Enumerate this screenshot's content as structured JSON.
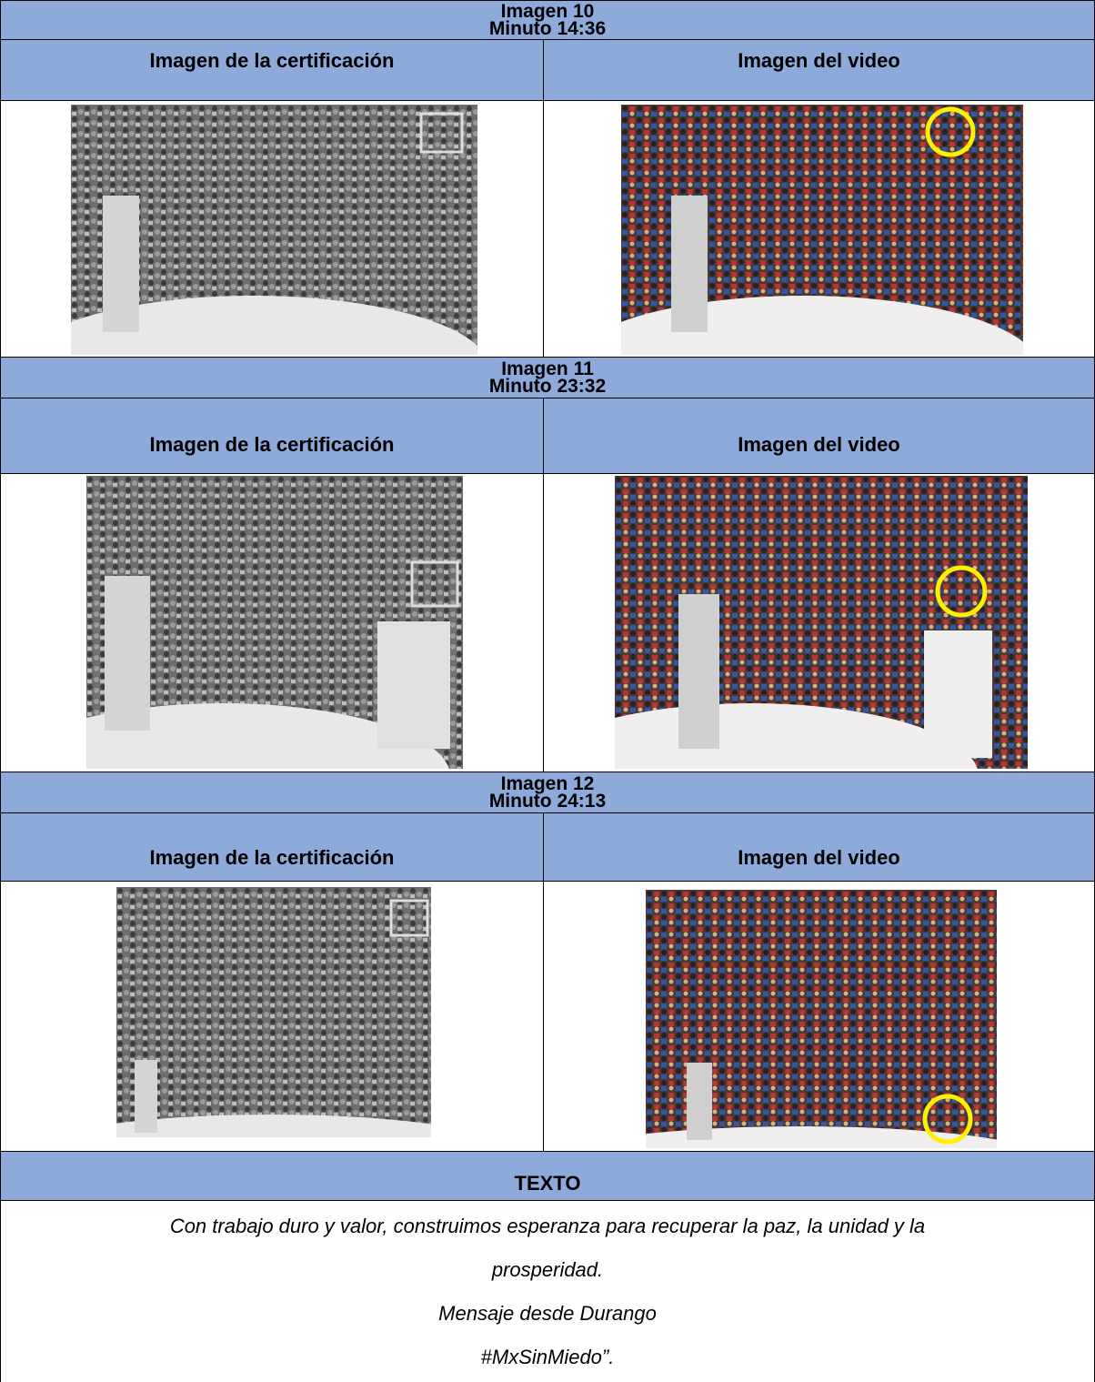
{
  "sections": [
    {
      "title": "Imagen 10",
      "minute": "Minuto 14:36",
      "left_header": "Imagen de la certificación",
      "right_header": "Imagen del video"
    },
    {
      "title": "Imagen 11",
      "minute": "Minuto 23:32",
      "left_header": "Imagen de la certificación",
      "right_header": "Imagen del video"
    },
    {
      "title": "Imagen 12",
      "minute": "Minuto 24:13",
      "left_header": "Imagen de la certificación",
      "right_header": "Imagen del video"
    }
  ],
  "text_section": {
    "header": "TEXTO",
    "lines": [
      "Con trabajo duro y valor, construimos esperanza para recuperar la paz, la unidad y la",
      "prosperidad.",
      "Mensaje desde Durango",
      "#MxSinMiedo”."
    ]
  }
}
